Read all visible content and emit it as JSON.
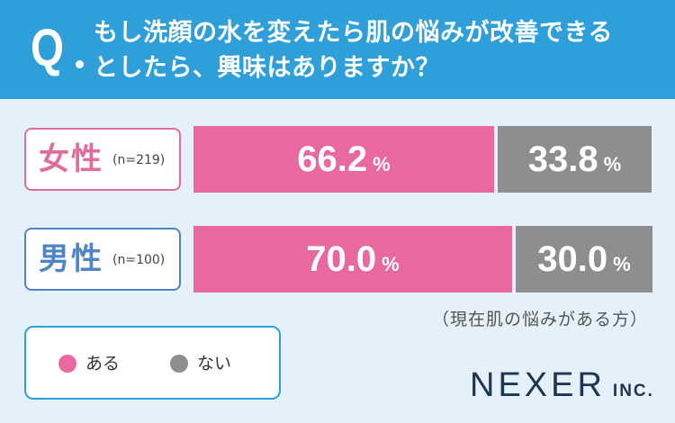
{
  "question": {
    "mark": "Q",
    "line1": "もし洗顔の水を変えたら肌の悩みが改善できる",
    "line2": "としたら、興味はありますか？"
  },
  "colors": {
    "header": "#2e9fd9",
    "yes": "#e8689f",
    "no": "#8e8e90",
    "female_label": "#e06c9d",
    "male_label": "#4f84c5"
  },
  "chart_data": {
    "type": "bar",
    "orientation": "horizontal",
    "stacked": true,
    "unit": "%",
    "categories": [
      {
        "label": "女性",
        "n": "(n=219)"
      },
      {
        "label": "男性",
        "n": "(n=100)"
      }
    ],
    "series": [
      {
        "name": "ある",
        "values": [
          66.2,
          70.0
        ]
      },
      {
        "name": "ない",
        "values": [
          33.8,
          30.0
        ]
      }
    ],
    "value_labels": [
      [
        "66.2",
        "70.0"
      ],
      [
        "33.8",
        "30.0"
      ]
    ],
    "xlim": [
      0,
      100
    ],
    "legend_placement": "bottom-left"
  },
  "note": "（現在肌の悩みがある方）",
  "logo": {
    "main": "NEXER",
    "sub": "INC."
  }
}
